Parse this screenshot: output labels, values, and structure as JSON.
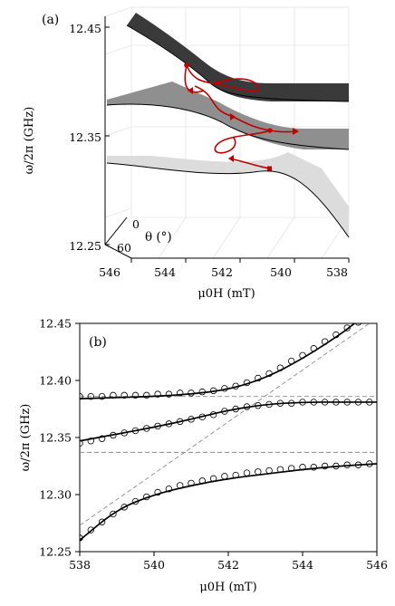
{
  "figure": {
    "panel_a_label": "(a)",
    "panel_b_label": "(b)"
  },
  "chart_data": [
    {
      "type": "surface",
      "panel": "(a)",
      "title": "",
      "xlabel": "μ0H (mT)",
      "ylabel": "ω/2π (GHz)",
      "zlabel": "θ (°)",
      "x_ticks": [
        "546",
        "544",
        "542",
        "540",
        "538"
      ],
      "y_ticks": [
        "12.45",
        "12.35",
        "12.25"
      ],
      "z_ticks": [
        "0",
        "60"
      ],
      "xlim": [
        546,
        538
      ],
      "ylim": [
        12.25,
        12.45
      ],
      "zlim": [
        0,
        60
      ],
      "grid": true,
      "colors": {
        "surface_upper": "#2a2a2a",
        "surface_middle": "#8a8a8a",
        "surface_lower": "#d8d8d8",
        "trajectory": "#c00000"
      }
    },
    {
      "type": "scatter",
      "panel": "(b)",
      "title": "",
      "xlabel": "μ0H (mT)",
      "ylabel": "ω/2π (GHz)",
      "x_ticks": [
        "538",
        "540",
        "542",
        "544",
        "546"
      ],
      "y_ticks": [
        "12.25",
        "12.30",
        "12.35",
        "12.40",
        "12.45"
      ],
      "xlim": [
        538,
        546
      ],
      "ylim": [
        12.25,
        12.45
      ],
      "grid": false,
      "x": [
        538.0,
        538.3,
        538.6,
        538.9,
        539.2,
        539.5,
        539.8,
        540.1,
        540.4,
        540.7,
        541.0,
        541.3,
        541.6,
        541.9,
        542.2,
        542.5,
        542.8,
        543.1,
        543.4,
        543.7,
        544.0,
        544.3,
        544.6,
        544.9,
        545.2,
        545.5,
        545.8
      ],
      "series": [
        {
          "marker": "circle",
          "values": [
            12.386,
            12.386,
            12.386,
            12.387,
            12.387,
            12.387,
            12.387,
            12.388,
            12.388,
            12.389,
            12.389,
            12.39,
            12.391,
            12.393,
            12.395,
            12.398,
            12.402,
            12.406,
            12.411,
            12.417,
            12.422,
            12.428,
            12.434,
            12.44,
            12.446,
            12.451,
            12.455
          ]
        },
        {
          "marker": "circle",
          "values": [
            12.345,
            12.347,
            12.349,
            12.352,
            12.354,
            12.356,
            12.358,
            12.36,
            12.362,
            12.364,
            12.366,
            12.368,
            12.37,
            12.373,
            12.375,
            12.377,
            12.378,
            12.379,
            12.38,
            12.38,
            12.381,
            12.381,
            12.381,
            12.381,
            12.381,
            12.381,
            12.381
          ]
        },
        {
          "marker": "circle",
          "values": [
            12.262,
            12.269,
            12.276,
            12.283,
            12.289,
            12.294,
            12.298,
            12.302,
            12.305,
            12.308,
            12.31,
            12.312,
            12.314,
            12.316,
            12.317,
            12.319,
            12.32,
            12.321,
            12.322,
            12.323,
            12.324,
            12.324,
            12.325,
            12.325,
            12.326,
            12.326,
            12.327
          ]
        }
      ],
      "fits": [
        {
          "style": "solid",
          "x": [
            538,
            539,
            540,
            541,
            542,
            543,
            544,
            545,
            545.4
          ],
          "values": [
            12.384,
            12.385,
            12.386,
            12.388,
            12.392,
            12.402,
            12.419,
            12.44,
            12.45
          ]
        },
        {
          "style": "solid",
          "x": [
            538,
            539,
            540,
            541,
            542,
            543,
            544,
            545,
            546
          ],
          "values": [
            12.347,
            12.353,
            12.359,
            12.366,
            12.374,
            12.379,
            12.381,
            12.381,
            12.381
          ]
        },
        {
          "style": "solid",
          "x": [
            538,
            539,
            540,
            541,
            542,
            543,
            544,
            545,
            546
          ],
          "values": [
            12.26,
            12.287,
            12.3,
            12.308,
            12.314,
            12.318,
            12.322,
            12.325,
            12.327
          ]
        }
      ],
      "uncoupled_modes": [
        {
          "style": "dashed",
          "x": [
            538,
            546
          ],
          "values": [
            12.386,
            12.386
          ]
        },
        {
          "style": "dashed",
          "x": [
            538,
            546
          ],
          "values": [
            12.337,
            12.337
          ]
        },
        {
          "style": "dashed",
          "x": [
            538,
            545.8
          ],
          "values": [
            12.273,
            12.45
          ]
        }
      ]
    }
  ]
}
